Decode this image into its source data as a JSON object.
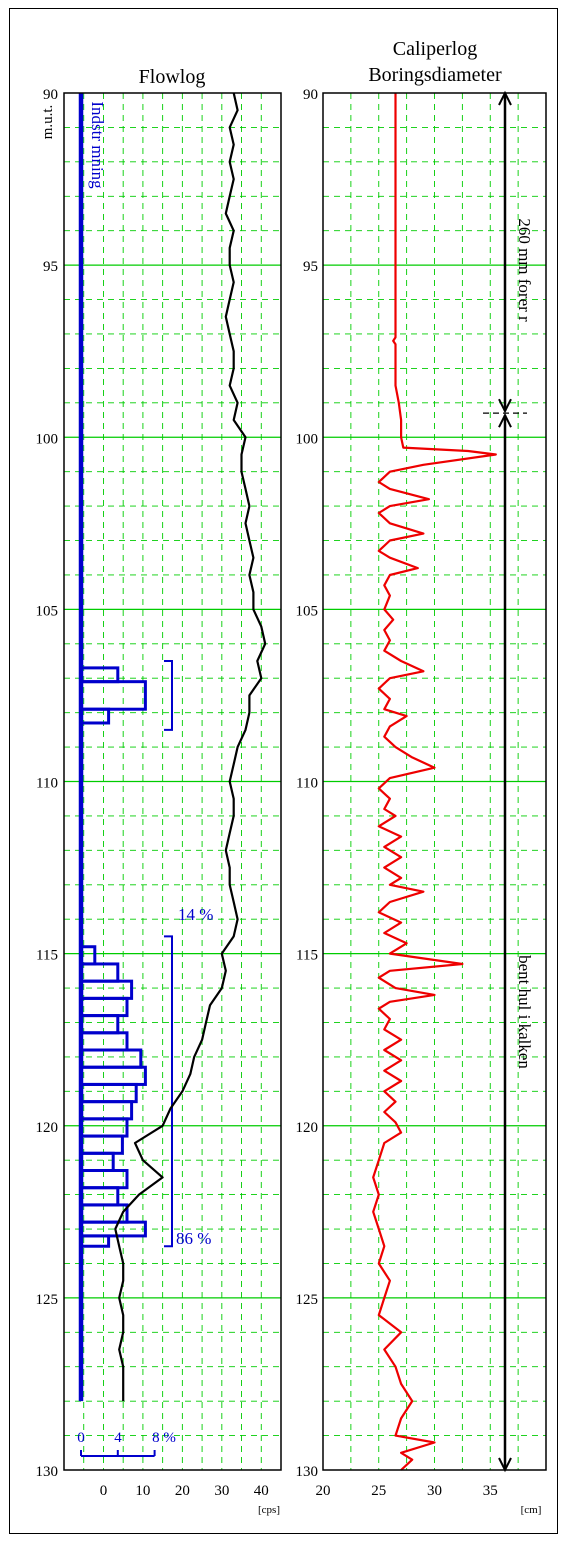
{
  "chart_data": [
    {
      "type": "line",
      "title": "Flowlog",
      "ylabel": "m.u.t.",
      "xunit": "[cps]",
      "xlim": [
        -10,
        45
      ],
      "ylim": [
        130,
        90
      ],
      "xticks": [
        0,
        10,
        20,
        30,
        40
      ],
      "yticks": [
        90,
        95,
        100,
        105,
        110,
        115,
        120,
        125,
        130
      ],
      "grid": true,
      "colors": {
        "flow": "#0000cc",
        "gamma": "#000000",
        "grid": "#00cc00"
      },
      "inflow_label": "Indstr mning",
      "scale_labels": [
        "0",
        "4",
        "8 %"
      ],
      "series": [
        {
          "values": [
            [
              33,
              90
            ],
            [
              34,
              90.5
            ],
            [
              32,
              91
            ],
            [
              33,
              91.5
            ],
            [
              32,
              92
            ],
            [
              33,
              92.5
            ],
            [
              32,
              93
            ],
            [
              31,
              93.5
            ],
            [
              33,
              94
            ],
            [
              32,
              94.5
            ],
            [
              32,
              95
            ],
            [
              33,
              95.5
            ],
            [
              32,
              96
            ],
            [
              31,
              96.5
            ],
            [
              32,
              97
            ],
            [
              33,
              97.5
            ],
            [
              33,
              98
            ],
            [
              32,
              98.5
            ],
            [
              34,
              99
            ],
            [
              33,
              99.5
            ],
            [
              36,
              100
            ],
            [
              35,
              100.5
            ],
            [
              35,
              101
            ],
            [
              36,
              101.5
            ],
            [
              37,
              102
            ],
            [
              36,
              102.5
            ],
            [
              37,
              103
            ],
            [
              38,
              103.5
            ],
            [
              37,
              104
            ],
            [
              38,
              104.5
            ],
            [
              38,
              105
            ],
            [
              40,
              105.5
            ],
            [
              41,
              106
            ],
            [
              39,
              106.5
            ],
            [
              40,
              107
            ],
            [
              37,
              107.5
            ],
            [
              37,
              108
            ],
            [
              36,
              108.5
            ],
            [
              34,
              109
            ],
            [
              33,
              109.5
            ],
            [
              32,
              110
            ],
            [
              33,
              110.5
            ],
            [
              33,
              111
            ],
            [
              32,
              111.5
            ],
            [
              31,
              112
            ],
            [
              32,
              112.5
            ],
            [
              32,
              113
            ],
            [
              33,
              113.5
            ],
            [
              34,
              114
            ],
            [
              33,
              114.5
            ],
            [
              30,
              115
            ],
            [
              31,
              115.5
            ],
            [
              30,
              116
            ],
            [
              27,
              116.5
            ],
            [
              26,
              117
            ],
            [
              25,
              117.5
            ],
            [
              23,
              118
            ],
            [
              22,
              118.5
            ],
            [
              20,
              119
            ],
            [
              17,
              119.5
            ],
            [
              15,
              120
            ],
            [
              8,
              120.5
            ],
            [
              10,
              121
            ],
            [
              15,
              121.5
            ],
            [
              9,
              122
            ],
            [
              5,
              122.5
            ],
            [
              3,
              123
            ],
            [
              4,
              123.5
            ],
            [
              5,
              124
            ],
            [
              5,
              124.5
            ],
            [
              4,
              125
            ],
            [
              5,
              125.5
            ],
            [
              5,
              126
            ],
            [
              4,
              126.5
            ],
            [
              5,
              127
            ],
            [
              5,
              127.5
            ],
            [
              5,
              128
            ]
          ]
        }
      ],
      "inflow_bins": [
        {
          "top": 106.7,
          "bottom": 107.1,
          "value": 4
        },
        {
          "top": 107.1,
          "bottom": 107.9,
          "value": 7
        },
        {
          "top": 107.9,
          "bottom": 108.3,
          "value": 3
        },
        {
          "top": 114.8,
          "bottom": 115.3,
          "value": 1.5
        },
        {
          "top": 115.3,
          "bottom": 115.8,
          "value": 4
        },
        {
          "top": 115.8,
          "bottom": 116.3,
          "value": 5.5
        },
        {
          "top": 116.3,
          "bottom": 116.8,
          "value": 5
        },
        {
          "top": 116.8,
          "bottom": 117.3,
          "value": 4
        },
        {
          "top": 117.3,
          "bottom": 117.8,
          "value": 5
        },
        {
          "top": 117.8,
          "bottom": 118.3,
          "value": 6.5
        },
        {
          "top": 118.3,
          "bottom": 118.8,
          "value": 7
        },
        {
          "top": 118.8,
          "bottom": 119.3,
          "value": 6
        },
        {
          "top": 119.3,
          "bottom": 119.8,
          "value": 5.5
        },
        {
          "top": 119.8,
          "bottom": 120.3,
          "value": 5
        },
        {
          "top": 120.3,
          "bottom": 120.8,
          "value": 4.5
        },
        {
          "top": 120.8,
          "bottom": 121.3,
          "value": 3.5
        },
        {
          "top": 121.3,
          "bottom": 121.8,
          "value": 5
        },
        {
          "top": 121.8,
          "bottom": 122.3,
          "value": 4
        },
        {
          "top": 122.3,
          "bottom": 122.8,
          "value": 5
        },
        {
          "top": 122.8,
          "bottom": 123.2,
          "value": 7
        },
        {
          "top": 123.2,
          "bottom": 123.5,
          "value": 3
        }
      ],
      "annotations": [
        {
          "text": "14 %",
          "from": 106.5,
          "to": 108.5
        },
        {
          "text": "86 %",
          "from": 114.5,
          "to": 123.5
        }
      ]
    },
    {
      "type": "line",
      "title": "Caliperlog",
      "subtitle": "Boringsdiameter",
      "xunit": "[cm]",
      "xlim": [
        20,
        40
      ],
      "ylim": [
        130,
        90
      ],
      "xticks": [
        20,
        25,
        30,
        35
      ],
      "yticks": [
        90,
        95,
        100,
        105,
        110,
        115,
        120,
        125,
        130
      ],
      "grid": true,
      "colors": {
        "caliper": "#ee0000",
        "grid": "#00cc00"
      },
      "series": [
        {
          "values": [
            [
              26.5,
              90
            ],
            [
              26.5,
              92
            ],
            [
              26.5,
              94
            ],
            [
              26.5,
              96
            ],
            [
              26.5,
              97.1
            ],
            [
              26.3,
              97.2
            ],
            [
              26.5,
              97.3
            ],
            [
              26.5,
              98.5
            ],
            [
              26.8,
              99
            ],
            [
              27,
              99.5
            ],
            [
              27,
              100
            ],
            [
              27.2,
              100.3
            ],
            [
              33,
              100.4
            ],
            [
              35.5,
              100.5
            ],
            [
              29,
              100.8
            ],
            [
              26,
              101
            ],
            [
              25,
              101.3
            ],
            [
              26,
              101.5
            ],
            [
              29.5,
              101.8
            ],
            [
              26,
              102
            ],
            [
              25,
              102.2
            ],
            [
              26,
              102.5
            ],
            [
              29,
              102.8
            ],
            [
              26,
              103
            ],
            [
              25,
              103.3
            ],
            [
              26,
              103.5
            ],
            [
              28.5,
              103.8
            ],
            [
              26,
              104
            ],
            [
              25.5,
              104.3
            ],
            [
              26,
              104.6
            ],
            [
              25.5,
              105
            ],
            [
              26.3,
              105.3
            ],
            [
              25.5,
              105.6
            ],
            [
              26,
              105.9
            ],
            [
              25.5,
              106.2
            ],
            [
              27,
              106.5
            ],
            [
              29,
              106.8
            ],
            [
              26,
              107
            ],
            [
              25,
              107.3
            ],
            [
              26,
              107.6
            ],
            [
              25.5,
              107.9
            ],
            [
              27.5,
              108.1
            ],
            [
              26,
              108.4
            ],
            [
              25.5,
              108.7
            ],
            [
              26.5,
              109
            ],
            [
              28,
              109.3
            ],
            [
              30,
              109.6
            ],
            [
              26,
              109.9
            ],
            [
              25,
              110.2
            ],
            [
              26,
              110.5
            ],
            [
              25.5,
              110.8
            ],
            [
              26.5,
              111
            ],
            [
              25,
              111.3
            ],
            [
              27,
              111.6
            ],
            [
              25.5,
              111.9
            ],
            [
              27,
              112.2
            ],
            [
              25.5,
              112.5
            ],
            [
              27,
              112.8
            ],
            [
              26,
              113
            ],
            [
              29,
              113.2
            ],
            [
              26,
              113.5
            ],
            [
              25,
              113.8
            ],
            [
              27,
              114.1
            ],
            [
              25.5,
              114.4
            ],
            [
              27.5,
              114.7
            ],
            [
              26,
              115
            ],
            [
              32.5,
              115.3
            ],
            [
              26,
              115.5
            ],
            [
              25,
              115.7
            ],
            [
              26.5,
              116
            ],
            [
              30,
              116.2
            ],
            [
              26,
              116.4
            ],
            [
              25,
              116.6
            ],
            [
              26,
              116.9
            ],
            [
              25.5,
              117.2
            ],
            [
              27,
              117.5
            ],
            [
              25.5,
              117.8
            ],
            [
              27,
              118.1
            ],
            [
              25.5,
              118.4
            ],
            [
              27,
              118.7
            ],
            [
              25.5,
              119
            ],
            [
              26.5,
              119.3
            ],
            [
              25.5,
              119.6
            ],
            [
              26.5,
              119.9
            ],
            [
              27,
              120.2
            ],
            [
              25.5,
              120.5
            ],
            [
              25,
              121
            ],
            [
              24.5,
              121.5
            ],
            [
              25,
              122
            ],
            [
              24.5,
              122.5
            ],
            [
              25,
              123
            ],
            [
              25.5,
              123.5
            ],
            [
              25,
              124
            ],
            [
              26,
              124.5
            ],
            [
              25.5,
              125
            ],
            [
              25,
              125.5
            ],
            [
              27,
              126
            ],
            [
              25.5,
              126.5
            ],
            [
              26.5,
              127
            ],
            [
              27,
              127.5
            ],
            [
              28,
              128
            ],
            [
              27,
              128.5
            ],
            [
              26.5,
              129
            ],
            [
              30,
              129.2
            ],
            [
              27,
              129.5
            ],
            [
              28,
              129.7
            ],
            [
              27,
              130
            ]
          ]
        }
      ],
      "right_labels": {
        "upper": "260 mm forer  r",
        "lower": "bent hul i kalken"
      }
    }
  ]
}
